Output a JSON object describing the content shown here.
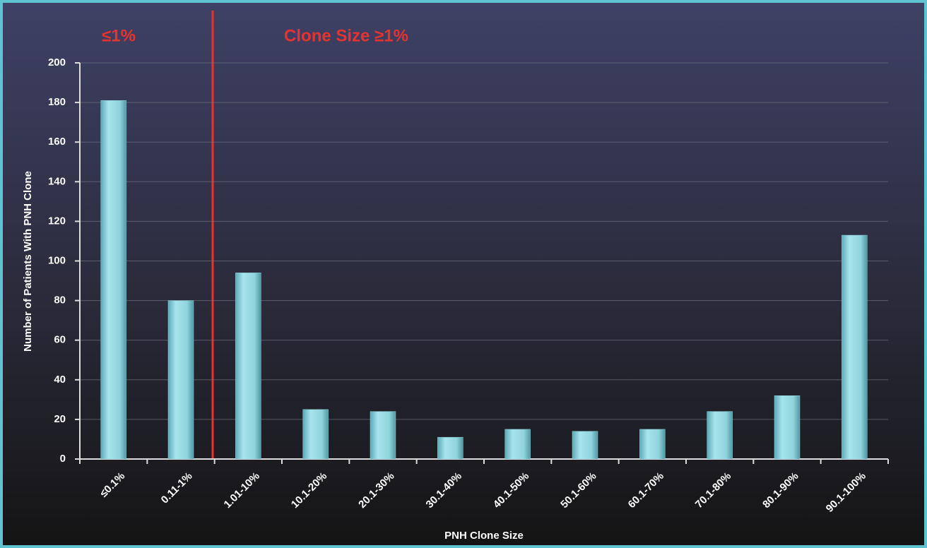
{
  "chart_data": {
    "type": "bar",
    "annotations": [
      "≤1%",
      "Clone Size ≥1%"
    ],
    "y_label": "Number of Patients With PNH Clone",
    "x_label": "PNH Clone Size",
    "categories": [
      "≤0.1%",
      "0.11-1%",
      "1.01-10%",
      "10.1-20%",
      "20.1-30%",
      "30.1-40%",
      "40.1-50%",
      "50.1-60%",
      "60.1-70%",
      "70.1-80%",
      "80.1-90%",
      "90.1-100%"
    ],
    "values": [
      181,
      80,
      94,
      25,
      24,
      11,
      15,
      14,
      15,
      24,
      32,
      113
    ],
    "color": "#8fd3dc",
    "ylim": [
      0,
      200
    ],
    "yticks": [
      0,
      20,
      40,
      60,
      80,
      100,
      120,
      140,
      160,
      180,
      200
    ],
    "grid": true
  }
}
